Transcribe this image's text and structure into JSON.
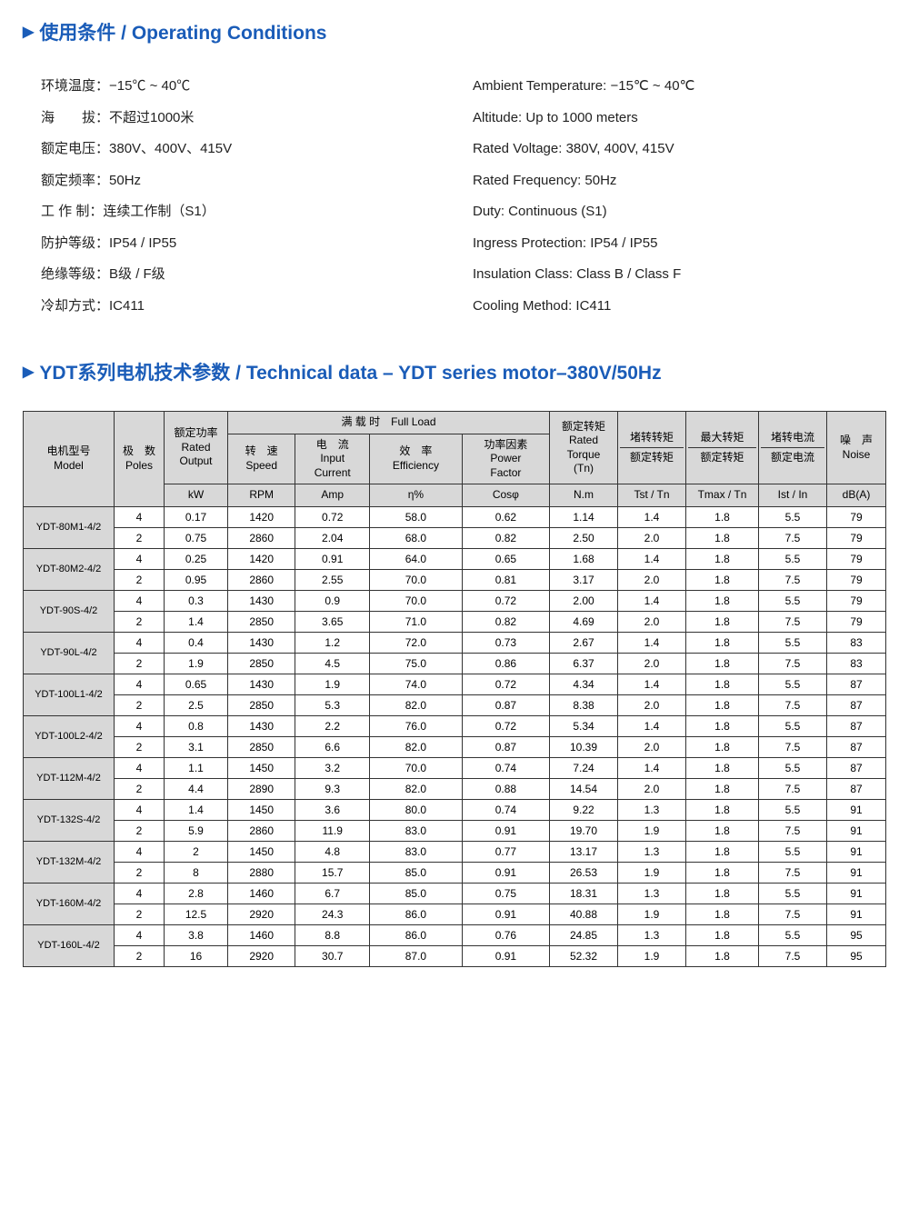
{
  "sections": {
    "conditions_title": "使用条件 / Operating Conditions",
    "tech_title": "YDT系列电机技术参数 / Technical data – YDT series motor–380V/50Hz"
  },
  "conditions_cn": [
    {
      "label": "环境温度：",
      "value": "−15℃ ~ 40℃"
    },
    {
      "label": "海　　拔：",
      "value": "不超过1000米"
    },
    {
      "label": "额定电压：",
      "value": "380V、400V、415V"
    },
    {
      "label": "额定频率：",
      "value": "50Hz"
    },
    {
      "label": "工 作 制：",
      "value": "连续工作制（S1）"
    },
    {
      "label": "防护等级：",
      "value": "IP54 / IP55"
    },
    {
      "label": "绝缘等级：",
      "value": "B级 / F级"
    },
    {
      "label": "冷却方式：",
      "value": "IC411"
    }
  ],
  "conditions_en": [
    "Ambient Temperature: −15℃ ~ 40℃",
    "Altitude: Up to 1000 meters",
    "Rated Voltage: 380V, 400V, 415V",
    "Rated Frequency: 50Hz",
    "Duty: Continuous (S1)",
    "Ingress Protection: IP54 / IP55",
    "Insulation Class: Class B / Class F",
    "Cooling Method: IC411"
  ],
  "headers": {
    "model": "电机型号\nModel",
    "poles": "极　数\nPoles",
    "rated_output": "额定功率\nRated\nOutput",
    "full_load": "满 载 时　Full Load",
    "speed": "转　速\nSpeed",
    "current": "电　流\nInput\nCurrent",
    "efficiency": "效　率\nEfficiency",
    "pf": "功率因素\nPower\nFactor",
    "rated_torque": "额定转矩\nRated\nTorque\n(Tn)",
    "locked_torque": "堵转转矩",
    "locked_torque_sub": "额定转矩",
    "max_torque": "最大转矩",
    "max_torque_sub": "额定转矩",
    "locked_current": "堵转电流",
    "locked_current_sub": "额定电流",
    "noise": "噪　声\nNoise",
    "units": {
      "kw": "kW",
      "rpm": "RPM",
      "amp": "Amp",
      "eta": "η%",
      "cos": "Cosφ",
      "nm": "N.m",
      "tst": "Tst / Tn",
      "tmax": "Tmax / Tn",
      "ist": "Ist / In",
      "db": "dB(A)"
    }
  },
  "rows": [
    {
      "model": "YDT-80M1-4/2",
      "d": [
        [
          "4",
          "0.17",
          "1420",
          "0.72",
          "58.0",
          "0.62",
          "1.14",
          "1.4",
          "1.8",
          "5.5",
          "79"
        ],
        [
          "2",
          "0.75",
          "2860",
          "2.04",
          "68.0",
          "0.82",
          "2.50",
          "2.0",
          "1.8",
          "7.5",
          "79"
        ]
      ]
    },
    {
      "model": "YDT-80M2-4/2",
      "d": [
        [
          "4",
          "0.25",
          "1420",
          "0.91",
          "64.0",
          "0.65",
          "1.68",
          "1.4",
          "1.8",
          "5.5",
          "79"
        ],
        [
          "2",
          "0.95",
          "2860",
          "2.55",
          "70.0",
          "0.81",
          "3.17",
          "2.0",
          "1.8",
          "7.5",
          "79"
        ]
      ]
    },
    {
      "model": "YDT-90S-4/2",
      "d": [
        [
          "4",
          "0.3",
          "1430",
          "0.9",
          "70.0",
          "0.72",
          "2.00",
          "1.4",
          "1.8",
          "5.5",
          "79"
        ],
        [
          "2",
          "1.4",
          "2850",
          "3.65",
          "71.0",
          "0.82",
          "4.69",
          "2.0",
          "1.8",
          "7.5",
          "79"
        ]
      ]
    },
    {
      "model": "YDT-90L-4/2",
      "d": [
        [
          "4",
          "0.4",
          "1430",
          "1.2",
          "72.0",
          "0.73",
          "2.67",
          "1.4",
          "1.8",
          "5.5",
          "83"
        ],
        [
          "2",
          "1.9",
          "2850",
          "4.5",
          "75.0",
          "0.86",
          "6.37",
          "2.0",
          "1.8",
          "7.5",
          "83"
        ]
      ]
    },
    {
      "model": "YDT-100L1-4/2",
      "d": [
        [
          "4",
          "0.65",
          "1430",
          "1.9",
          "74.0",
          "0.72",
          "4.34",
          "1.4",
          "1.8",
          "5.5",
          "87"
        ],
        [
          "2",
          "2.5",
          "2850",
          "5.3",
          "82.0",
          "0.87",
          "8.38",
          "2.0",
          "1.8",
          "7.5",
          "87"
        ]
      ]
    },
    {
      "model": "YDT-100L2-4/2",
      "d": [
        [
          "4",
          "0.8",
          "1430",
          "2.2",
          "76.0",
          "0.72",
          "5.34",
          "1.4",
          "1.8",
          "5.5",
          "87"
        ],
        [
          "2",
          "3.1",
          "2850",
          "6.6",
          "82.0",
          "0.87",
          "10.39",
          "2.0",
          "1.8",
          "7.5",
          "87"
        ]
      ]
    },
    {
      "model": "YDT-112M-4/2",
      "d": [
        [
          "4",
          "1.1",
          "1450",
          "3.2",
          "70.0",
          "0.74",
          "7.24",
          "1.4",
          "1.8",
          "5.5",
          "87"
        ],
        [
          "2",
          "4.4",
          "2890",
          "9.3",
          "82.0",
          "0.88",
          "14.54",
          "2.0",
          "1.8",
          "7.5",
          "87"
        ]
      ]
    },
    {
      "model": "YDT-132S-4/2",
      "d": [
        [
          "4",
          "1.4",
          "1450",
          "3.6",
          "80.0",
          "0.74",
          "9.22",
          "1.3",
          "1.8",
          "5.5",
          "91"
        ],
        [
          "2",
          "5.9",
          "2860",
          "11.9",
          "83.0",
          "0.91",
          "19.70",
          "1.9",
          "1.8",
          "7.5",
          "91"
        ]
      ]
    },
    {
      "model": "YDT-132M-4/2",
      "d": [
        [
          "4",
          "2",
          "1450",
          "4.8",
          "83.0",
          "0.77",
          "13.17",
          "1.3",
          "1.8",
          "5.5",
          "91"
        ],
        [
          "2",
          "8",
          "2880",
          "15.7",
          "85.0",
          "0.91",
          "26.53",
          "1.9",
          "1.8",
          "7.5",
          "91"
        ]
      ]
    },
    {
      "model": "YDT-160M-4/2",
      "d": [
        [
          "4",
          "2.8",
          "1460",
          "6.7",
          "85.0",
          "0.75",
          "18.31",
          "1.3",
          "1.8",
          "5.5",
          "91"
        ],
        [
          "2",
          "12.5",
          "2920",
          "24.3",
          "86.0",
          "0.91",
          "40.88",
          "1.9",
          "1.8",
          "7.5",
          "91"
        ]
      ]
    },
    {
      "model": "YDT-160L-4/2",
      "d": [
        [
          "4",
          "3.8",
          "1460",
          "8.8",
          "86.0",
          "0.76",
          "24.85",
          "1.3",
          "1.8",
          "5.5",
          "95"
        ],
        [
          "2",
          "16",
          "2920",
          "30.7",
          "87.0",
          "0.91",
          "52.32",
          "1.9",
          "1.8",
          "7.5",
          "95"
        ]
      ]
    }
  ],
  "colors": {
    "title": "#1a5cb8",
    "header_bg": "#d8d8d8",
    "border": "#333333",
    "text": "#222222"
  }
}
